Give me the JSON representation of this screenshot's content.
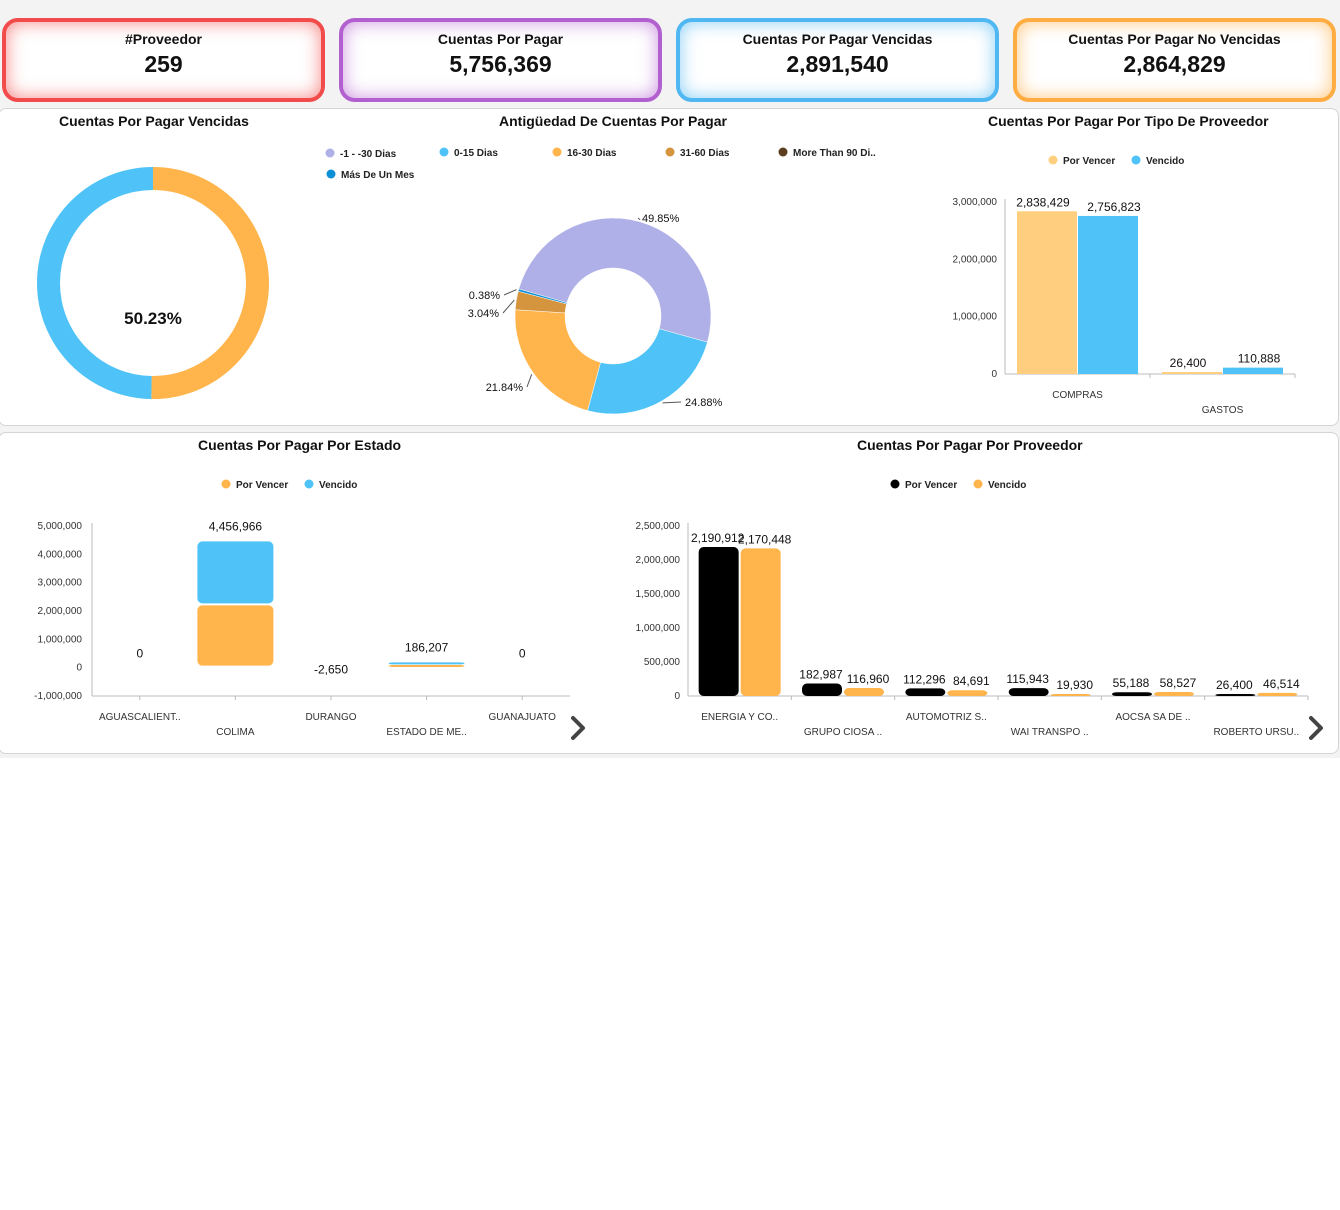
{
  "kpis": [
    {
      "label": "#Proveedor",
      "value": "259",
      "color": "#f24b4b"
    },
    {
      "label": "Cuentas Por Pagar",
      "value": "5,756,369",
      "color": "#b25fcf"
    },
    {
      "label": "Cuentas Por Pagar Vencidas",
      "value": "2,891,540",
      "color": "#4fb7f2"
    },
    {
      "label": "Cuentas Por Pagar No Vencidas",
      "value": "2,864,829",
      "color": "#ffad42"
    }
  ],
  "chart_data": [
    {
      "id": "vencidas",
      "type": "pie",
      "title": "Cuentas Por Pagar Vencidas",
      "center_label": "50.23%",
      "slices": [
        {
          "value": 50.23,
          "color": "#ffb54c"
        },
        {
          "value": 49.77,
          "color": "#4fc3f7"
        }
      ]
    },
    {
      "id": "antiguedad",
      "type": "pie",
      "title": "Antigüedad De Cuentas Por Pagar",
      "legend": [
        {
          "name": "-1 - -30 Dias",
          "color": "#b0b0e8"
        },
        {
          "name": "0-15 Dias",
          "color": "#4fc3f7"
        },
        {
          "name": "16-30 Dias",
          "color": "#ffb54c"
        },
        {
          "name": "31-60 Dias",
          "color": "#d4953e"
        },
        {
          "name": "More Than 90 Di..",
          "color": "#5c3d1e"
        },
        {
          "name": "Más De Un Mes",
          "color": "#0b8fd6"
        }
      ],
      "slices": [
        {
          "name": "-1 - -30 Dias",
          "value": 49.85,
          "label": "49.85%",
          "color": "#b0b0e8"
        },
        {
          "name": "0-15 Dias",
          "value": 24.88,
          "label": "24.88%",
          "color": "#4fc3f7"
        },
        {
          "name": "16-30 Dias",
          "value": 21.84,
          "label": "21.84%",
          "color": "#ffb54c"
        },
        {
          "name": "31-60 Dias",
          "value": 3.04,
          "label": "3.04%",
          "color": "#d4953e"
        },
        {
          "name": "Más De Un Mes",
          "value": 0.38,
          "label": "0.38%",
          "color": "#0b8fd6"
        }
      ]
    },
    {
      "id": "tipo",
      "type": "bar",
      "title": "Cuentas Por Pagar Por Tipo De Proveedor",
      "categories": [
        "COMPRAS",
        "GASTOS"
      ],
      "series": [
        {
          "name": "Por Vencer",
          "color": "#ffcf7f",
          "values": [
            2838429,
            26400
          ],
          "labels": [
            "2,838,429",
            "26,400"
          ]
        },
        {
          "name": "Vencido",
          "color": "#4fc3f7",
          "values": [
            2756823,
            110888
          ],
          "labels": [
            "2,756,823",
            "110,888"
          ]
        }
      ],
      "ylim": [
        0,
        3000000
      ],
      "yticks": [
        0,
        1000000,
        2000000,
        3000000
      ],
      "ytick_labels": [
        "0",
        "1,000,000",
        "2,000,000",
        "3,000,000"
      ]
    },
    {
      "id": "estado",
      "type": "bar",
      "stacked": true,
      "title": "Cuentas Por Pagar Por Estado",
      "categories": [
        "AGUASCALIENT..",
        "COLIMA",
        "DURANGO",
        "ESTADO DE ME..",
        "GUANAJUATO"
      ],
      "series": [
        {
          "name": "Por Vencer",
          "color": "#ffb54c",
          "values": [
            0,
            2200000,
            -2650,
            96000,
            0
          ]
        },
        {
          "name": "Vencido",
          "color": "#4fc3f7",
          "values": [
            0,
            2256966,
            0,
            90207,
            0
          ]
        }
      ],
      "totals": [
        "0",
        "4,456,966",
        "-2,650",
        "186,207",
        "0"
      ],
      "ylim": [
        -1000000,
        5000000
      ],
      "yticks": [
        -1000000,
        0,
        1000000,
        2000000,
        3000000,
        4000000,
        5000000
      ],
      "ytick_labels": [
        "-1,000,000",
        "0",
        "1,000,000",
        "2,000,000",
        "3,000,000",
        "4,000,000",
        "5,000,000"
      ]
    },
    {
      "id": "proveedor",
      "type": "bar",
      "title": "Cuentas Por Pagar Por Proveedor",
      "categories": [
        "ENERGIA Y CO..",
        "GRUPO CIOSA ..",
        "AUTOMOTRIZ S..",
        "WAI TRANSPO ..",
        "AOCSA SA DE ..",
        "ROBERTO URSU.."
      ],
      "series": [
        {
          "name": "Por Vencer",
          "color": "#000000",
          "values": [
            2190912,
            182987,
            112296,
            115943,
            55188,
            26400
          ],
          "labels": [
            "2,190,912",
            "182,987",
            "112,296",
            "115,943",
            "55,188",
            "26,400"
          ]
        },
        {
          "name": "Vencido",
          "color": "#ffb54c",
          "values": [
            2170448,
            116960,
            84691,
            19930,
            58527,
            46514
          ],
          "labels": [
            "2,170,448",
            "116,960",
            "84,691",
            "19,930",
            "58,527",
            "46,514"
          ]
        }
      ],
      "ylim": [
        0,
        2500000
      ],
      "yticks": [
        0,
        500000,
        1000000,
        1500000,
        2000000,
        2500000
      ],
      "ytick_labels": [
        "0",
        "500,000",
        "1,000,000",
        "1,500,000",
        "2,000,000",
        "2,500,000"
      ]
    }
  ]
}
